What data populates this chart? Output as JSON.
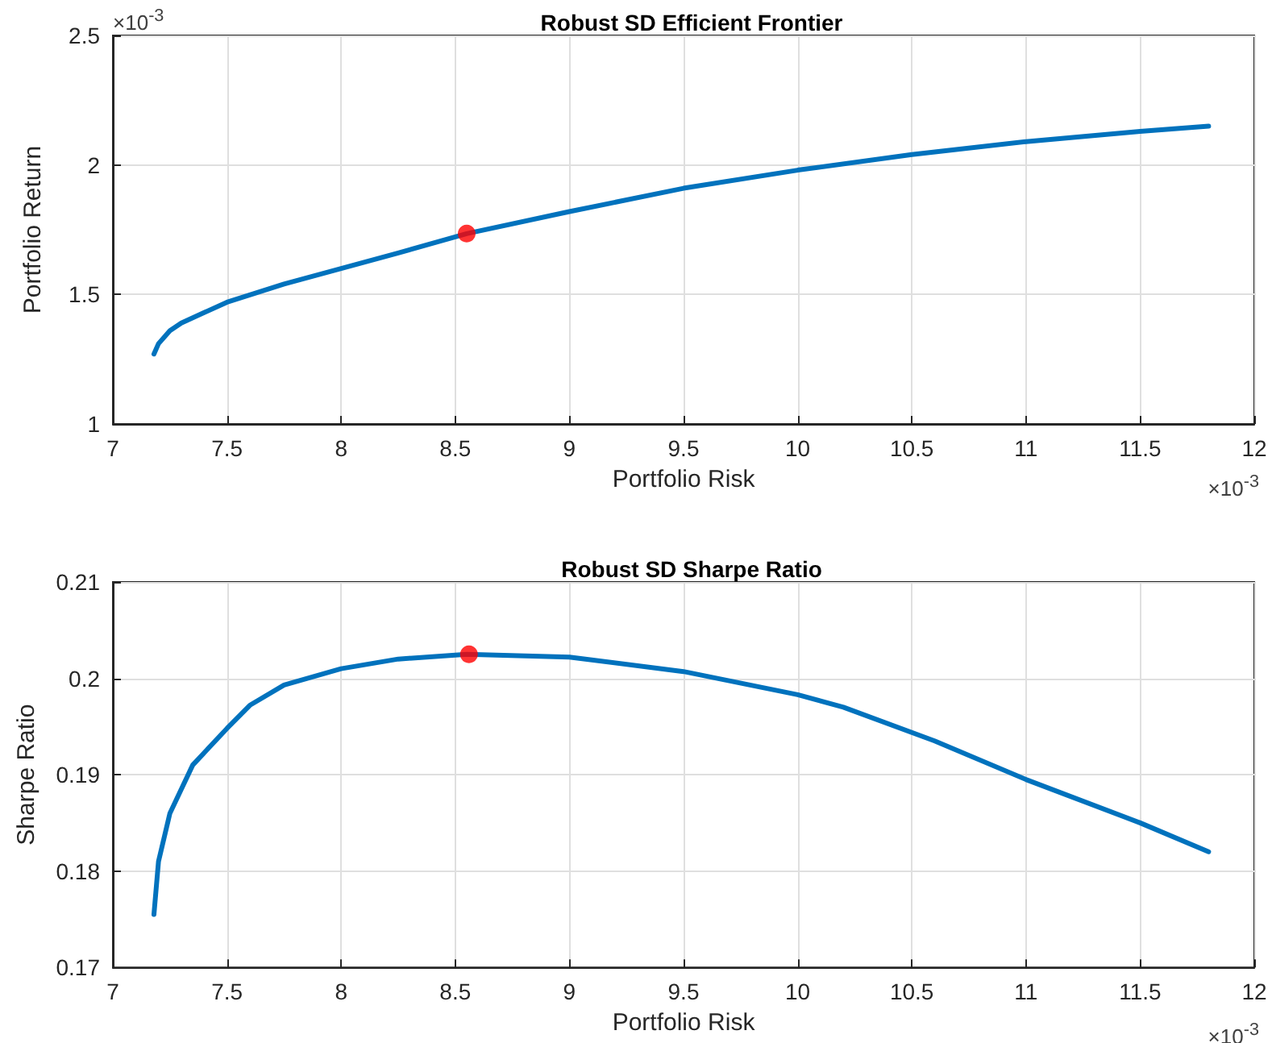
{
  "chart_data": [
    {
      "type": "line",
      "title": "Robust SD Efficient Frontier",
      "xlabel": "Portfolio Risk",
      "ylabel": "Portfolio Return",
      "annotations": [
        "×10$^{-3}$",
        "×10$^{-3}$"
      ],
      "xlim": [
        7,
        12
      ],
      "xticks": [
        7,
        7.5,
        8,
        8.5,
        9,
        9.5,
        10,
        10.5,
        11,
        11.5,
        12
      ],
      "ylim": [
        1,
        2.5
      ],
      "yticks": [
        1,
        1.5,
        2,
        2.5
      ],
      "grid": true,
      "series": [
        {
          "type": "line",
          "color": "#0072bd",
          "marker": "none",
          "line_style": "solid",
          "x": [
            7.18,
            7.2,
            7.25,
            7.3,
            7.4,
            7.5,
            7.75,
            8,
            8.25,
            8.55,
            9,
            9.5,
            10,
            10.5,
            11,
            11.5,
            11.8
          ],
          "values": [
            1.27,
            1.31,
            1.36,
            1.39,
            1.43,
            1.47,
            1.54,
            1.6,
            1.66,
            1.735,
            1.82,
            1.91,
            1.98,
            2.04,
            2.09,
            2.13,
            2.15
          ]
        },
        {
          "type": "scatter",
          "color": "#ff0000",
          "marker": "circle",
          "x": [
            8.55
          ],
          "values": [
            1.735
          ]
        }
      ]
    },
    {
      "type": "line",
      "title": "Robust SD Sharpe Ratio",
      "xlabel": "Portfolio Risk",
      "ylabel": "Sharpe Ratio",
      "annotations": [
        "×10$^{-3}$"
      ],
      "xlim": [
        7,
        12
      ],
      "xticks": [
        7,
        7.5,
        8,
        8.5,
        9,
        9.5,
        10,
        10.5,
        11,
        11.5,
        12
      ],
      "ylim": [
        0.17,
        0.21
      ],
      "yticks": [
        0.17,
        0.18,
        0.19,
        0.2,
        0.21
      ],
      "grid": true,
      "series": [
        {
          "type": "line",
          "color": "#0072bd",
          "marker": "none",
          "line_style": "solid",
          "x": [
            7.18,
            7.2,
            7.25,
            7.35,
            7.5,
            7.6,
            7.75,
            8,
            8.25,
            8.55,
            9,
            9.5,
            10,
            10.2,
            10.6,
            11,
            11.5,
            11.8
          ],
          "values": [
            0.1755,
            0.181,
            0.186,
            0.191,
            0.1948,
            0.1972,
            0.1993,
            0.201,
            0.202,
            0.2025,
            0.2022,
            0.2007,
            0.1983,
            0.197,
            0.1935,
            0.1895,
            0.185,
            0.182
          ]
        },
        {
          "type": "scatter",
          "color": "#ff0000",
          "marker": "circle",
          "x": [
            8.56
          ],
          "values": [
            0.2025
          ]
        }
      ]
    }
  ]
}
